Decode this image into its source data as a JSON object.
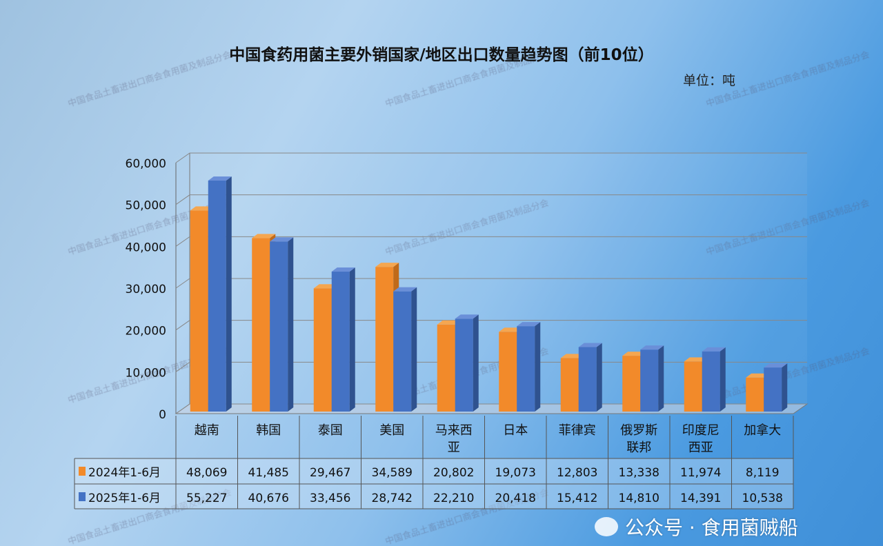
{
  "chart_data": {
    "type": "bar",
    "title": "中国食药用菌主要外销国家/地区出口数量趋势图（前10位）",
    "unit": "单位：吨",
    "categories": [
      "越南",
      "韩国",
      "泰国",
      "美国",
      "马来西亚",
      "日本",
      "菲律宾",
      "俄罗斯联邦",
      "印度尼西亚",
      "加拿大"
    ],
    "category_lines": [
      [
        "越南"
      ],
      [
        "韩国"
      ],
      [
        "泰国"
      ],
      [
        "美国"
      ],
      [
        "马来西",
        "亚"
      ],
      [
        "日本"
      ],
      [
        "菲律宾"
      ],
      [
        "俄罗斯",
        "联邦"
      ],
      [
        "印度尼",
        "西亚"
      ],
      [
        "加拿大"
      ]
    ],
    "series": [
      {
        "name": "2024年1-6月",
        "color": "#f28a2a",
        "values": [
          48069,
          41485,
          29467,
          34589,
          20802,
          19073,
          12803,
          13338,
          11974,
          8119
        ],
        "labels": [
          "48,069",
          "41,485",
          "29,467",
          "34,589",
          "20,802",
          "19,073",
          "12,803",
          "13,338",
          "11,974",
          "8,119"
        ]
      },
      {
        "name": "2025年1-6月",
        "color": "#4472c4",
        "values": [
          55227,
          40676,
          33456,
          28742,
          22210,
          20418,
          15412,
          14810,
          14391,
          10538
        ],
        "labels": [
          "55,227",
          "40,676",
          "33,456",
          "28,742",
          "22,210",
          "20,418",
          "15,412",
          "14,810",
          "14,391",
          "10,538"
        ]
      }
    ],
    "ylim": [
      0,
      60000
    ],
    "yticks": [
      "0",
      "10,000",
      "20,000",
      "30,000",
      "40,000",
      "50,000",
      "60,000"
    ],
    "grid": true,
    "legend": "data-table"
  },
  "watermark": "中国食品土畜进出口商会食用菌及制品分会",
  "brand": "公众号 · 食用菌贼船"
}
